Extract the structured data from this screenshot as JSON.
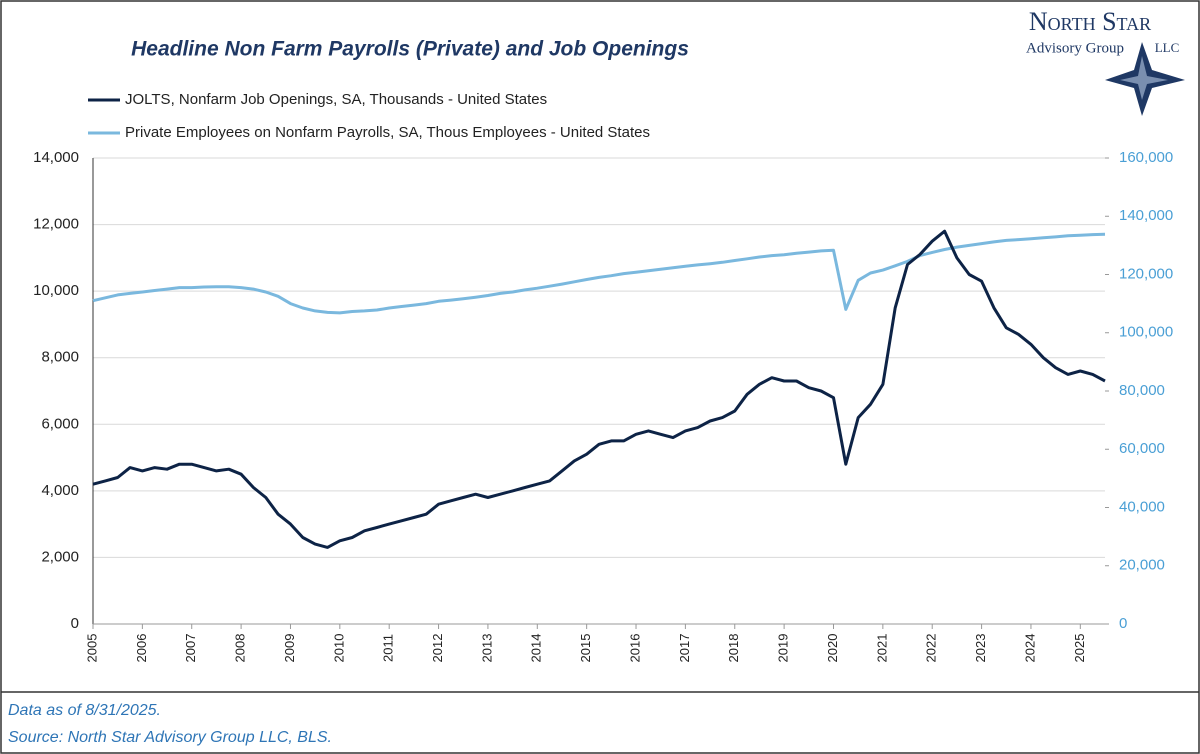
{
  "chart_data": {
    "type": "line",
    "title": "Headline Non Farm Payrolls (Private) and Job Openings",
    "logo": {
      "name": "North Star",
      "subtitle": "Advisory Group",
      "suffix": "LLC"
    },
    "footer": [
      "Data as of 8/31/2025.",
      "Source: North Star Advisory Group LLC, BLS."
    ],
    "x": [
      2005,
      2005.25,
      2005.5,
      2005.75,
      2006,
      2006.25,
      2006.5,
      2006.75,
      2007,
      2007.25,
      2007.5,
      2007.75,
      2008,
      2008.25,
      2008.5,
      2008.75,
      2009,
      2009.25,
      2009.5,
      2009.75,
      2010,
      2010.25,
      2010.5,
      2010.75,
      2011,
      2011.25,
      2011.5,
      2011.75,
      2012,
      2012.25,
      2012.5,
      2012.75,
      2013,
      2013.25,
      2013.5,
      2013.75,
      2014,
      2014.25,
      2014.5,
      2014.75,
      2015,
      2015.25,
      2015.5,
      2015.75,
      2016,
      2016.25,
      2016.5,
      2016.75,
      2017,
      2017.25,
      2017.5,
      2017.75,
      2018,
      2018.25,
      2018.5,
      2018.75,
      2019,
      2019.25,
      2019.5,
      2019.75,
      2020,
      2020.25,
      2020.5,
      2020.75,
      2021,
      2021.25,
      2021.5,
      2021.75,
      2022,
      2022.25,
      2022.5,
      2022.75,
      2023,
      2023.25,
      2023.5,
      2023.75,
      2024,
      2024.25,
      2024.5,
      2024.75,
      2025,
      2025.25,
      2025.5
    ],
    "series": [
      {
        "name": "JOLTS, Nonfarm Job Openings, SA, Thousands - United States",
        "color": "#0d2346",
        "values": [
          4200,
          4300,
          4400,
          4700,
          4600,
          4700,
          4650,
          4800,
          4800,
          4700,
          4600,
          4650,
          4500,
          4100,
          3800,
          3300,
          3000,
          2600,
          2400,
          2300,
          2500,
          2600,
          2800,
          2900,
          3000,
          3100,
          3200,
          3300,
          3600,
          3700,
          3800,
          3900,
          3800,
          3900,
          4000,
          4100,
          4200,
          4300,
          4600,
          4900,
          5100,
          5400,
          5500,
          5500,
          5700,
          5800,
          5700,
          5600,
          5800,
          5900,
          6100,
          6200,
          6400,
          6900,
          7200,
          7400,
          7300,
          7300,
          7100,
          7000,
          6800,
          4800,
          6200,
          6600,
          7200,
          9500,
          10800,
          11100,
          11500,
          11800,
          11000,
          10500,
          10300,
          9500,
          8900,
          8700,
          8400,
          8000,
          7700,
          7500,
          7600,
          7500,
          7300
        ]
      },
      {
        "name": "Private Employees on Nonfarm Payrolls, SA, Thous Employees - United States",
        "color": "#7ab8de",
        "axis": "y2",
        "values": [
          111000,
          112000,
          113000,
          113500,
          114000,
          114500,
          115000,
          115500,
          115500,
          115700,
          115800,
          115800,
          115500,
          115000,
          114000,
          112500,
          110000,
          108500,
          107500,
          107000,
          106800,
          107300,
          107500,
          107800,
          108500,
          109000,
          109500,
          110000,
          110800,
          111200,
          111700,
          112200,
          112800,
          113500,
          114000,
          114700,
          115300,
          116000,
          116700,
          117500,
          118300,
          119000,
          119600,
          120300,
          120800,
          121300,
          121800,
          122300,
          122800,
          123300,
          123700,
          124200,
          124800,
          125400,
          126000,
          126500,
          126800,
          127300,
          127700,
          128100,
          128300,
          108000,
          118000,
          120500,
          121500,
          123000,
          124500,
          126500,
          127600,
          128600,
          129400,
          130000,
          130600,
          131200,
          131700,
          132000,
          132300,
          132600,
          132900,
          133300,
          133500,
          133700,
          133800
        ]
      }
    ],
    "xlim": [
      2005,
      2025.5
    ],
    "xticks": [
      2005,
      2006,
      2007,
      2008,
      2009,
      2010,
      2011,
      2012,
      2013,
      2014,
      2015,
      2016,
      2017,
      2018,
      2019,
      2020,
      2021,
      2022,
      2023,
      2024,
      2025
    ],
    "ylim": [
      0,
      14000
    ],
    "yticks": [
      0,
      {
        "value": 2000,
        "label": "2,000"
      },
      {
        "value": 4000,
        "label": "4,000"
      },
      {
        "value": 6000,
        "label": "6,000"
      },
      {
        "value": 8000,
        "label": "8,000"
      },
      {
        "value": 10000,
        "label": "10,000"
      },
      {
        "value": 12000,
        "label": "12,000"
      },
      {
        "value": 14000,
        "label": "14,000"
      }
    ],
    "y2lim": [
      0,
      160000
    ],
    "y2ticks": [
      0,
      {
        "value": 20000,
        "label": "20,000"
      },
      {
        "value": 40000,
        "label": "40,000"
      },
      {
        "value": 60000,
        "label": "60,000"
      },
      {
        "value": 80000,
        "label": "80,000"
      },
      {
        "value": 100000,
        "label": "100,000"
      },
      {
        "value": 120000,
        "label": "120,000"
      },
      {
        "value": 140000,
        "label": "140,000"
      },
      {
        "value": 160000,
        "label": "160,000"
      }
    ],
    "grid": true
  }
}
